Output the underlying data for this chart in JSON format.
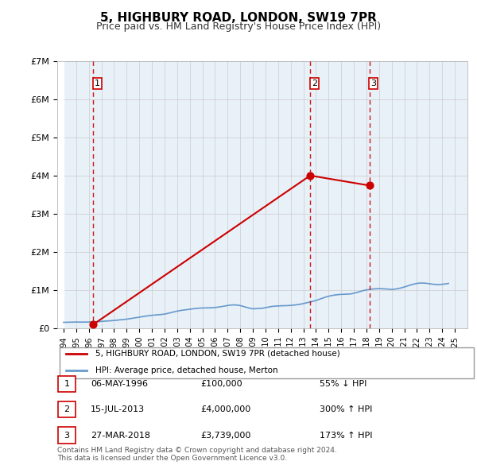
{
  "title": "5, HIGHBURY ROAD, LONDON, SW19 7PR",
  "subtitle": "Price paid vs. HM Land Registry's House Price Index (HPI)",
  "ylabel_ticks": [
    "£0",
    "£1M",
    "£2M",
    "£3M",
    "£4M",
    "£5M",
    "£6M",
    "£7M"
  ],
  "ytick_vals": [
    0,
    1000000,
    2000000,
    3000000,
    4000000,
    5000000,
    6000000,
    7000000
  ],
  "ylim": [
    0,
    7000000
  ],
  "xlim_start": 1993.5,
  "xlim_end": 2026.0,
  "hpi_color": "#6699cc",
  "price_color": "#cc0000",
  "hatch_color": "#cccccc",
  "transactions": [
    {
      "label": "1",
      "date": "06-MAY-1996",
      "price": 100000,
      "year": 1996.35,
      "hpi_pct": "55% ↓ HPI"
    },
    {
      "label": "2",
      "date": "15-JUL-2013",
      "price": 4000000,
      "year": 2013.54,
      "hpi_pct": "300% ↑ HPI"
    },
    {
      "label": "3",
      "date": "27-MAR-2018",
      "price": 3739000,
      "year": 2018.23,
      "hpi_pct": "173% ↑ HPI"
    }
  ],
  "legend_entries": [
    "5, HIGHBURY ROAD, LONDON, SW19 7PR (detached house)",
    "HPI: Average price, detached house, Merton"
  ],
  "table_rows": [
    [
      "1",
      "06-MAY-1996",
      "£100,000",
      "55% ↓ HPI"
    ],
    [
      "2",
      "15-JUL-2013",
      "£4,000,000",
      "300% ↑ HPI"
    ],
    [
      "3",
      "27-MAR-2018",
      "£3,739,000",
      "173% ↑ HPI"
    ]
  ],
  "footer": "Contains HM Land Registry data © Crown copyright and database right 2024.\nThis data is licensed under the Open Government Licence v3.0.",
  "hpi_data_years": [
    1994.0,
    1994.25,
    1994.5,
    1994.75,
    1995.0,
    1995.25,
    1995.5,
    1995.75,
    1996.0,
    1996.25,
    1996.5,
    1996.75,
    1997.0,
    1997.25,
    1997.5,
    1997.75,
    1998.0,
    1998.25,
    1998.5,
    1998.75,
    1999.0,
    1999.25,
    1999.5,
    1999.75,
    2000.0,
    2000.25,
    2000.5,
    2000.75,
    2001.0,
    2001.25,
    2001.5,
    2001.75,
    2002.0,
    2002.25,
    2002.5,
    2002.75,
    2003.0,
    2003.25,
    2003.5,
    2003.75,
    2004.0,
    2004.25,
    2004.5,
    2004.75,
    2005.0,
    2005.25,
    2005.5,
    2005.75,
    2006.0,
    2006.25,
    2006.5,
    2006.75,
    2007.0,
    2007.25,
    2007.5,
    2007.75,
    2008.0,
    2008.25,
    2008.5,
    2008.75,
    2009.0,
    2009.25,
    2009.5,
    2009.75,
    2010.0,
    2010.25,
    2010.5,
    2010.75,
    2011.0,
    2011.25,
    2011.5,
    2011.75,
    2012.0,
    2012.25,
    2012.5,
    2012.75,
    2013.0,
    2013.25,
    2013.5,
    2013.75,
    2014.0,
    2014.25,
    2014.5,
    2014.75,
    2015.0,
    2015.25,
    2015.5,
    2015.75,
    2016.0,
    2016.25,
    2016.5,
    2016.75,
    2017.0,
    2017.25,
    2017.5,
    2017.75,
    2018.0,
    2018.25,
    2018.5,
    2018.75,
    2019.0,
    2019.25,
    2019.5,
    2019.75,
    2020.0,
    2020.25,
    2020.5,
    2020.75,
    2021.0,
    2021.25,
    2021.5,
    2021.75,
    2022.0,
    2022.25,
    2022.5,
    2022.75,
    2023.0,
    2023.25,
    2023.5,
    2023.75,
    2024.0,
    2024.25,
    2024.5
  ],
  "hpi_data_values": [
    155000,
    158000,
    160000,
    162000,
    165000,
    163000,
    162000,
    163000,
    165000,
    168000,
    172000,
    175000,
    180000,
    187000,
    193000,
    198000,
    205000,
    213000,
    222000,
    230000,
    240000,
    252000,
    265000,
    278000,
    292000,
    305000,
    318000,
    330000,
    340000,
    348000,
    355000,
    362000,
    372000,
    390000,
    410000,
    430000,
    450000,
    465000,
    478000,
    488000,
    498000,
    510000,
    520000,
    528000,
    532000,
    535000,
    535000,
    538000,
    545000,
    555000,
    568000,
    582000,
    598000,
    608000,
    612000,
    608000,
    595000,
    572000,
    548000,
    525000,
    510000,
    515000,
    520000,
    525000,
    540000,
    558000,
    572000,
    580000,
    585000,
    590000,
    592000,
    595000,
    600000,
    608000,
    618000,
    630000,
    648000,
    668000,
    688000,
    705000,
    728000,
    758000,
    788000,
    815000,
    840000,
    858000,
    872000,
    882000,
    888000,
    892000,
    895000,
    900000,
    918000,
    940000,
    965000,
    988000,
    1005000,
    1018000,
    1028000,
    1035000,
    1038000,
    1035000,
    1030000,
    1025000,
    1018000,
    1025000,
    1040000,
    1058000,
    1082000,
    1108000,
    1135000,
    1158000,
    1175000,
    1185000,
    1185000,
    1178000,
    1165000,
    1155000,
    1148000,
    1145000,
    1152000,
    1162000,
    1175000
  ],
  "xtick_years": [
    1994,
    1995,
    1996,
    1997,
    1998,
    1999,
    2000,
    2001,
    2002,
    2003,
    2004,
    2005,
    2006,
    2007,
    2008,
    2009,
    2010,
    2011,
    2012,
    2013,
    2014,
    2015,
    2016,
    2017,
    2018,
    2019,
    2020,
    2021,
    2022,
    2023,
    2024,
    2025
  ]
}
